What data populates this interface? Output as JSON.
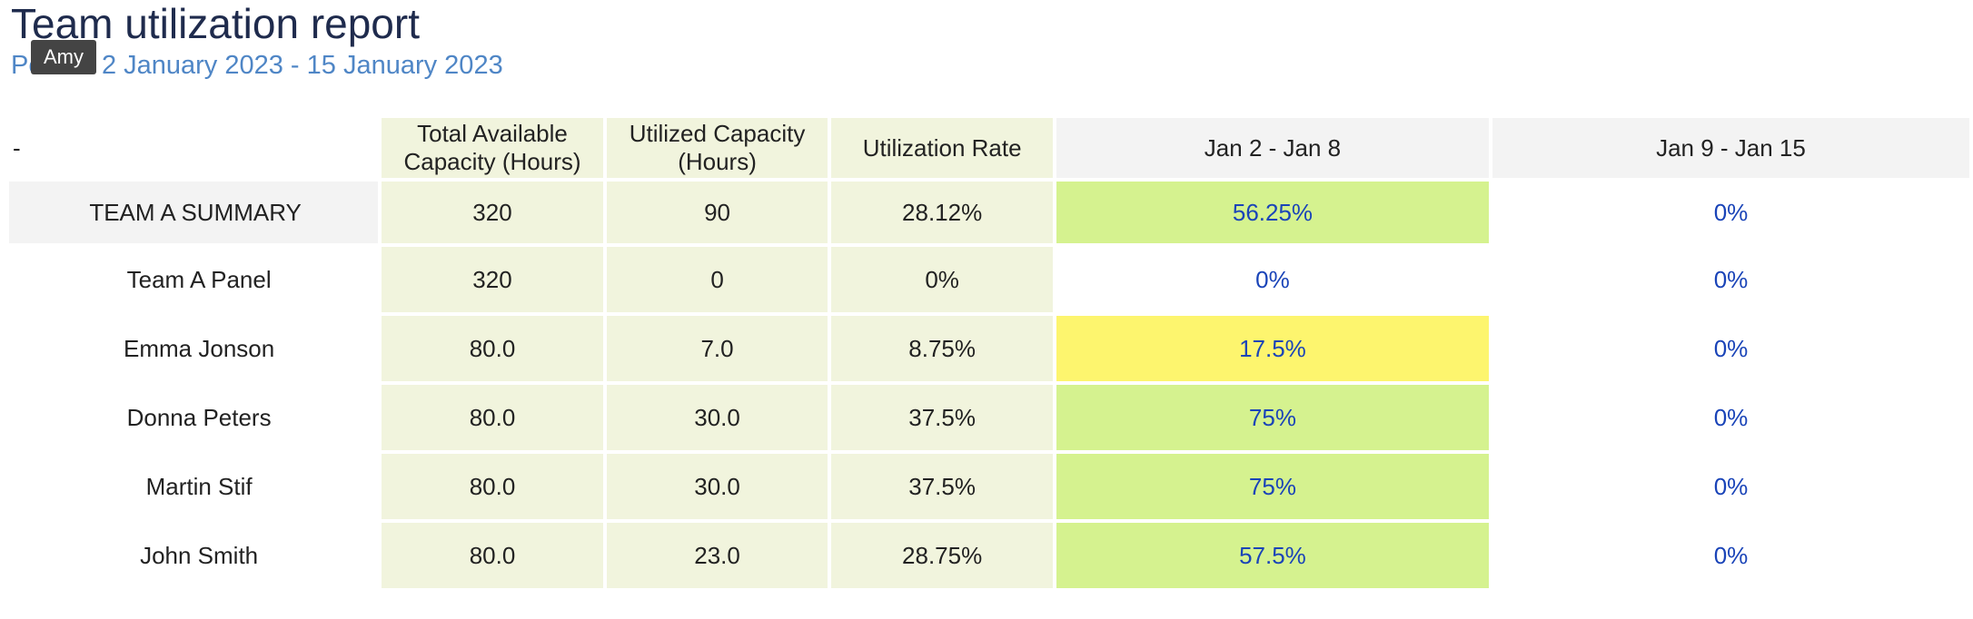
{
  "report": {
    "title": "Team utilization report",
    "period": "Period: 2 January 2023 - 15 January 2023",
    "tooltip": "Amy"
  },
  "table": {
    "headers": {
      "name": "-",
      "total": "Total Available Capacity (Hours)",
      "utilized": "Utilized Capacity (Hours)",
      "rate": "Utilization Rate",
      "week1": "Jan 2 - Jan 8",
      "week2": "Jan 9 - Jan 15"
    },
    "rows": [
      {
        "name": "TEAM A SUMMARY",
        "total": "320",
        "utilized": "90",
        "rate": "28.12%",
        "week1": "56.25%",
        "week2": "0%",
        "week1_color": "#d5f28f"
      },
      {
        "name": "Team A Panel",
        "total": "320",
        "utilized": "0",
        "rate": "0%",
        "week1": "0%",
        "week2": "0%",
        "week1_color": "#ffffff"
      },
      {
        "name": "Emma Jonson",
        "total": "80.0",
        "utilized": "7.0",
        "rate": "8.75%",
        "week1": "17.5%",
        "week2": "0%",
        "week1_color": "#fdf56e"
      },
      {
        "name": "Donna Peters",
        "total": "80.0",
        "utilized": "30.0",
        "rate": "37.5%",
        "week1": "75%",
        "week2": "0%",
        "week1_color": "#d5f28f"
      },
      {
        "name": "Martin Stif",
        "total": "80.0",
        "utilized": "30.0",
        "rate": "37.5%",
        "week1": "75%",
        "week2": "0%",
        "week1_color": "#d5f28f"
      },
      {
        "name": "John Smith",
        "total": "80.0",
        "utilized": "23.0",
        "rate": "28.75%",
        "week1": "57.5%",
        "week2": "0%",
        "week1_color": "#d5f28f"
      }
    ]
  }
}
